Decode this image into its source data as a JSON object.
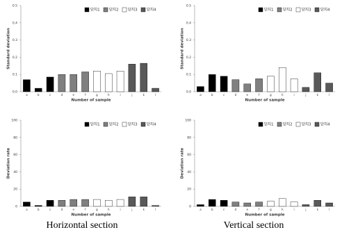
{
  "chart_data": [
    {
      "type": "bar",
      "ylabel": "Standard deviation",
      "xlabel": "Number of sample",
      "categories": [
        "a",
        "b",
        "c",
        "d",
        "e",
        "f",
        "g",
        "h",
        "i",
        "j",
        "k",
        "l"
      ],
      "series": [
        {
          "name": "단지1",
          "color": "#000000",
          "values": [
            0.07,
            0.02,
            0.085,
            null,
            null,
            null,
            null,
            null,
            null,
            null,
            null,
            null
          ]
        },
        {
          "name": "단지2",
          "color": "#808080",
          "values": [
            null,
            null,
            null,
            0.1,
            0.1,
            0.115,
            null,
            null,
            null,
            null,
            null,
            null
          ]
        },
        {
          "name": "단지3",
          "color": "#ffffff",
          "values": [
            null,
            null,
            null,
            null,
            null,
            null,
            0.12,
            0.105,
            0.12,
            null,
            null,
            null
          ]
        },
        {
          "name": "단지4",
          "color": "#595959",
          "values": [
            null,
            null,
            null,
            null,
            null,
            null,
            null,
            null,
            null,
            0.16,
            0.165,
            0.02
          ]
        }
      ],
      "ylim": [
        0,
        0.5
      ],
      "yticks": [
        {
          "value": 0,
          "label": "0.0"
        },
        0.1,
        0.2,
        0.3,
        0.4,
        0.5
      ]
    },
    {
      "type": "bar",
      "ylabel": "Standard deviation",
      "xlabel": "Number of sample",
      "categories": [
        "a",
        "b",
        "c",
        "d",
        "e",
        "f",
        "g",
        "h",
        "i",
        "j",
        "k",
        "l"
      ],
      "series": [
        {
          "name": "단지1",
          "color": "#000000",
          "values": [
            0.03,
            0.1,
            0.09,
            null,
            null,
            null,
            null,
            null,
            null,
            null,
            null,
            null
          ]
        },
        {
          "name": "단지2",
          "color": "#808080",
          "values": [
            null,
            null,
            null,
            0.07,
            0.045,
            0.075,
            null,
            null,
            null,
            null,
            null,
            null
          ]
        },
        {
          "name": "단지3",
          "color": "#ffffff",
          "values": [
            null,
            null,
            null,
            null,
            null,
            null,
            0.09,
            0.14,
            0.075,
            null,
            null,
            null
          ]
        },
        {
          "name": "단지4",
          "color": "#595959",
          "values": [
            null,
            null,
            null,
            null,
            null,
            null,
            null,
            null,
            null,
            0.025,
            0.11,
            0.05
          ]
        }
      ],
      "ylim": [
        0,
        0.5
      ],
      "yticks": [
        {
          "value": 0,
          "label": "0.0"
        },
        0.1,
        0.2,
        0.3,
        0.4,
        0.5
      ]
    },
    {
      "type": "bar",
      "ylabel": "Deviation rate",
      "xlabel": "Number of sample",
      "categories": [
        "a",
        "b",
        "c",
        "d",
        "e",
        "f",
        "g",
        "h",
        "i",
        "j",
        "k",
        "l"
      ],
      "series": [
        {
          "name": "단지1",
          "color": "#000000",
          "values": [
            5,
            1,
            7,
            null,
            null,
            null,
            null,
            null,
            null,
            null,
            null,
            null
          ]
        },
        {
          "name": "단지2",
          "color": "#808080",
          "values": [
            null,
            null,
            null,
            7,
            8,
            8,
            null,
            null,
            null,
            null,
            null,
            null
          ]
        },
        {
          "name": "단지3",
          "color": "#ffffff",
          "values": [
            null,
            null,
            null,
            null,
            null,
            null,
            8,
            7,
            8,
            null,
            null,
            null
          ]
        },
        {
          "name": "단지4",
          "color": "#595959",
          "values": [
            null,
            null,
            null,
            null,
            null,
            null,
            null,
            null,
            null,
            11,
            11,
            1
          ]
        }
      ],
      "ylim": [
        0,
        100
      ],
      "yticks": [
        0,
        20,
        40,
        60,
        80,
        100
      ]
    },
    {
      "type": "bar",
      "ylabel": "Deviation rate",
      "xlabel": "Number of sample",
      "categories": [
        "a",
        "b",
        "c",
        "d",
        "e",
        "f",
        "g",
        "h",
        "i",
        "j",
        "k",
        "l"
      ],
      "series": [
        {
          "name": "단지1",
          "color": "#000000",
          "values": [
            2,
            8,
            7,
            null,
            null,
            null,
            null,
            null,
            null,
            null,
            null,
            null
          ]
        },
        {
          "name": "단지2",
          "color": "#808080",
          "values": [
            null,
            null,
            null,
            5,
            4,
            5,
            null,
            null,
            null,
            null,
            null,
            null
          ]
        },
        {
          "name": "단지3",
          "color": "#ffffff",
          "values": [
            null,
            null,
            null,
            null,
            null,
            null,
            6,
            9,
            5,
            null,
            null,
            null
          ]
        },
        {
          "name": "단지4",
          "color": "#595959",
          "values": [
            null,
            null,
            null,
            null,
            null,
            null,
            null,
            null,
            null,
            2,
            7,
            4
          ]
        }
      ],
      "ylim": [
        0,
        100
      ],
      "yticks": [
        0,
        20,
        40,
        60,
        80,
        100
      ]
    }
  ],
  "captions": [
    "Horizontal section",
    "Vertical section"
  ]
}
